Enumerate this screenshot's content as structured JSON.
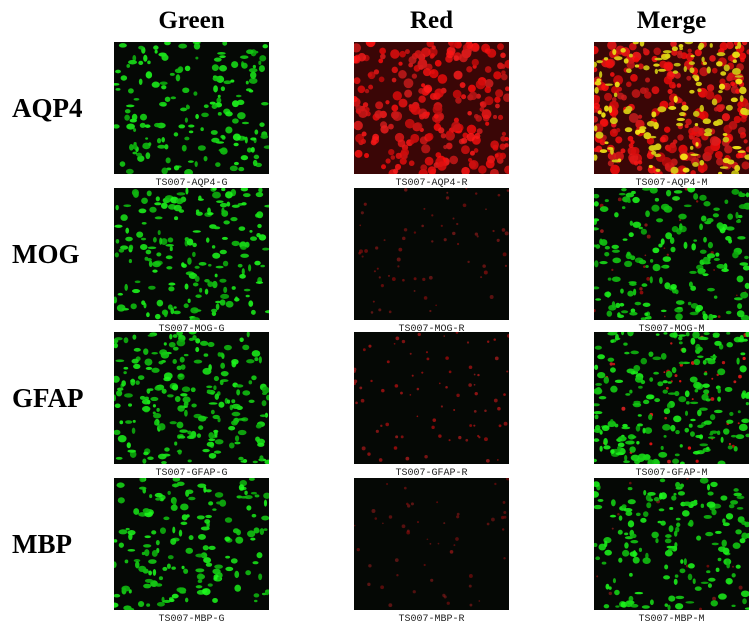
{
  "columns": [
    "Green",
    "Red",
    "Merge"
  ],
  "rows": [
    {
      "label": "AQP4",
      "captions": [
        "TS007-AQP4-G",
        "TS007-AQP4-R",
        "TS007-AQP4-M"
      ]
    },
    {
      "label": "MOG",
      "captions": [
        "TS007-MOG-G",
        "TS007-MOG-R",
        "TS007-MOG-M"
      ]
    },
    {
      "label": "GFAP",
      "captions": [
        "TS007-GFAP-G",
        "TS007-GFAP-R",
        "TS007-GFAP-M"
      ]
    },
    {
      "label": "MBP",
      "captions": [
        "TS007-MBP-G",
        "TS007-MBP-R",
        "TS007-MBP-M"
      ]
    }
  ]
}
